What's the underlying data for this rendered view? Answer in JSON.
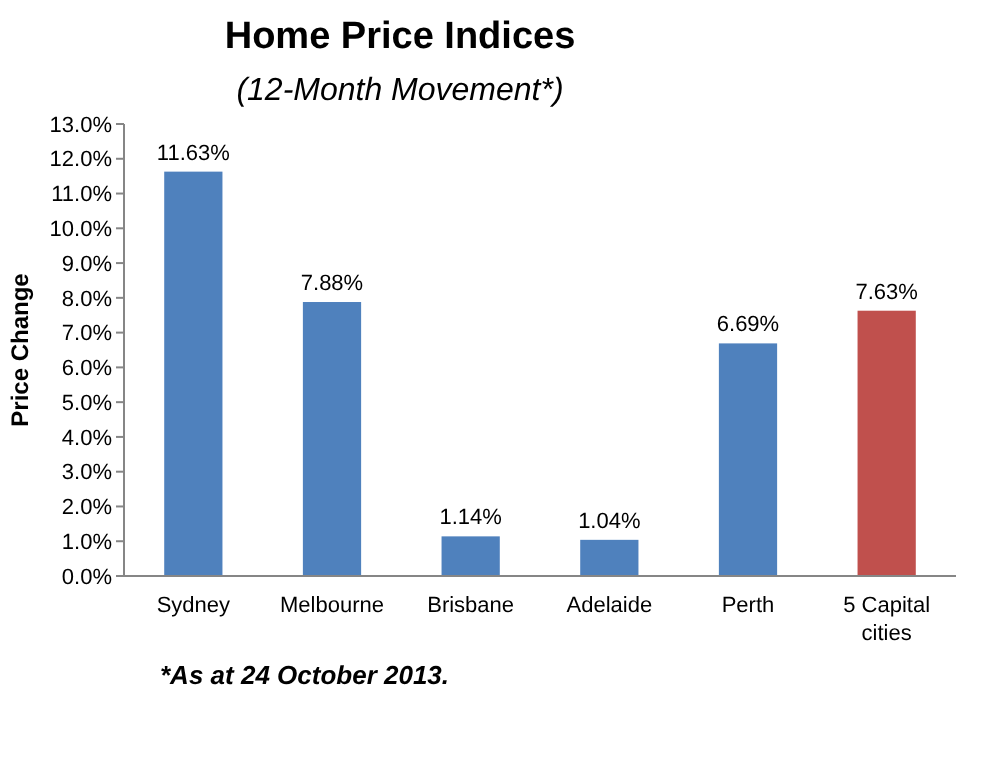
{
  "chart_data": {
    "type": "bar",
    "title": "Home Price Indices",
    "subtitle": "(12-Month Movement*)",
    "ylabel": "Price Change",
    "categories": [
      "Sydney",
      "Melbourne",
      "Brisbane",
      "Adelaide",
      "Perth",
      "5 Capital cities"
    ],
    "values": [
      11.63,
      7.88,
      1.14,
      1.04,
      6.69,
      7.63
    ],
    "colors": [
      "#4f81bd",
      "#4f81bd",
      "#4f81bd",
      "#4f81bd",
      "#4f81bd",
      "#c0504d"
    ],
    "value_labels": [
      "11.63%",
      "7.88%",
      "1.14%",
      "1.04%",
      "6.69%",
      "7.63%"
    ],
    "ylim": [
      0,
      13
    ],
    "yticks": [
      {
        "value": 0,
        "label": "0.0%"
      },
      {
        "value": 1,
        "label": "1.0%"
      },
      {
        "value": 2,
        "label": "2.0%"
      },
      {
        "value": 3,
        "label": "3.0%"
      },
      {
        "value": 4,
        "label": "4.0%"
      },
      {
        "value": 5,
        "label": "5.0%"
      },
      {
        "value": 6,
        "label": "6.0%"
      },
      {
        "value": 7,
        "label": "7.0%"
      },
      {
        "value": 8,
        "label": "8.0%"
      },
      {
        "value": 9,
        "label": "9.0%"
      },
      {
        "value": 10,
        "label": "10.0%"
      },
      {
        "value": 11,
        "label": "11.0%"
      },
      {
        "value": 12,
        "label": "12.0%"
      },
      {
        "value": 13,
        "label": "13.0%"
      }
    ],
    "annotations": [
      "*As at 24 October 2013."
    ]
  }
}
